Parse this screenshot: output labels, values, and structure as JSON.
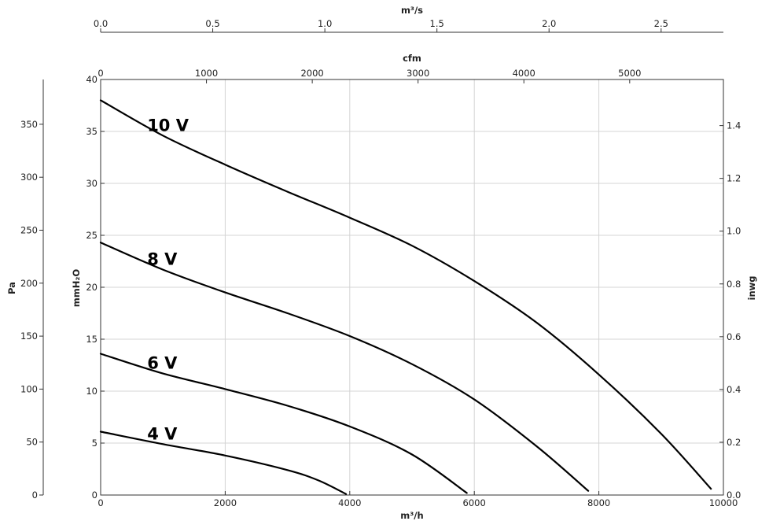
{
  "chart_data": {
    "type": "line",
    "title": "",
    "xlabel": "m³/h",
    "xlim": [
      0,
      10000
    ],
    "x_ticks": [
      0,
      2000,
      4000,
      6000,
      8000,
      10000
    ],
    "ylabel": "mmH₂O",
    "ylim": [
      0,
      40
    ],
    "y_ticks": [
      0,
      5,
      10,
      15,
      20,
      25,
      30,
      35,
      40
    ],
    "grid": true,
    "legend": "none",
    "secondary_axes": {
      "top_inner": {
        "label": "cfm",
        "ticks": [
          0,
          1000,
          2000,
          3000,
          4000,
          5000
        ]
      },
      "top_outer": {
        "label": "m³/s",
        "ticks": [
          "0.0",
          "0.5",
          "1.0",
          "1.5",
          "2.0",
          "2.5"
        ]
      },
      "left_outer": {
        "label": "Pa",
        "ticks": [
          0,
          50,
          100,
          150,
          200,
          250,
          300,
          350
        ]
      },
      "right": {
        "label": "inwg",
        "ticks": [
          "0.0",
          "0.2",
          "0.4",
          "0.6",
          "0.8",
          "1.0",
          "1.2",
          "1.4"
        ]
      }
    },
    "series": [
      {
        "label": "10 V",
        "x": [
          0,
          1000,
          2000,
          3000,
          4000,
          5000,
          6000,
          7000,
          8000,
          9000,
          9800
        ],
        "y": [
          38.0,
          34.6,
          31.8,
          29.2,
          26.7,
          24.0,
          20.6,
          16.6,
          11.6,
          5.9,
          0.6
        ]
      },
      {
        "label": "8 V",
        "x": [
          0,
          1000,
          2000,
          3000,
          4000,
          5000,
          6000,
          7000,
          7830
        ],
        "y": [
          24.3,
          21.7,
          19.5,
          17.5,
          15.3,
          12.6,
          9.2,
          4.7,
          0.4
        ]
      },
      {
        "label": "6 V",
        "x": [
          0,
          1000,
          2000,
          3000,
          4000,
          5000,
          5880
        ],
        "y": [
          13.6,
          11.7,
          10.2,
          8.6,
          6.6,
          3.9,
          0.2
        ]
      },
      {
        "label": "4 V",
        "x": [
          0,
          1000,
          2000,
          3000,
          3500,
          3940
        ],
        "y": [
          6.1,
          4.9,
          3.8,
          2.4,
          1.4,
          0.1
        ]
      }
    ]
  }
}
